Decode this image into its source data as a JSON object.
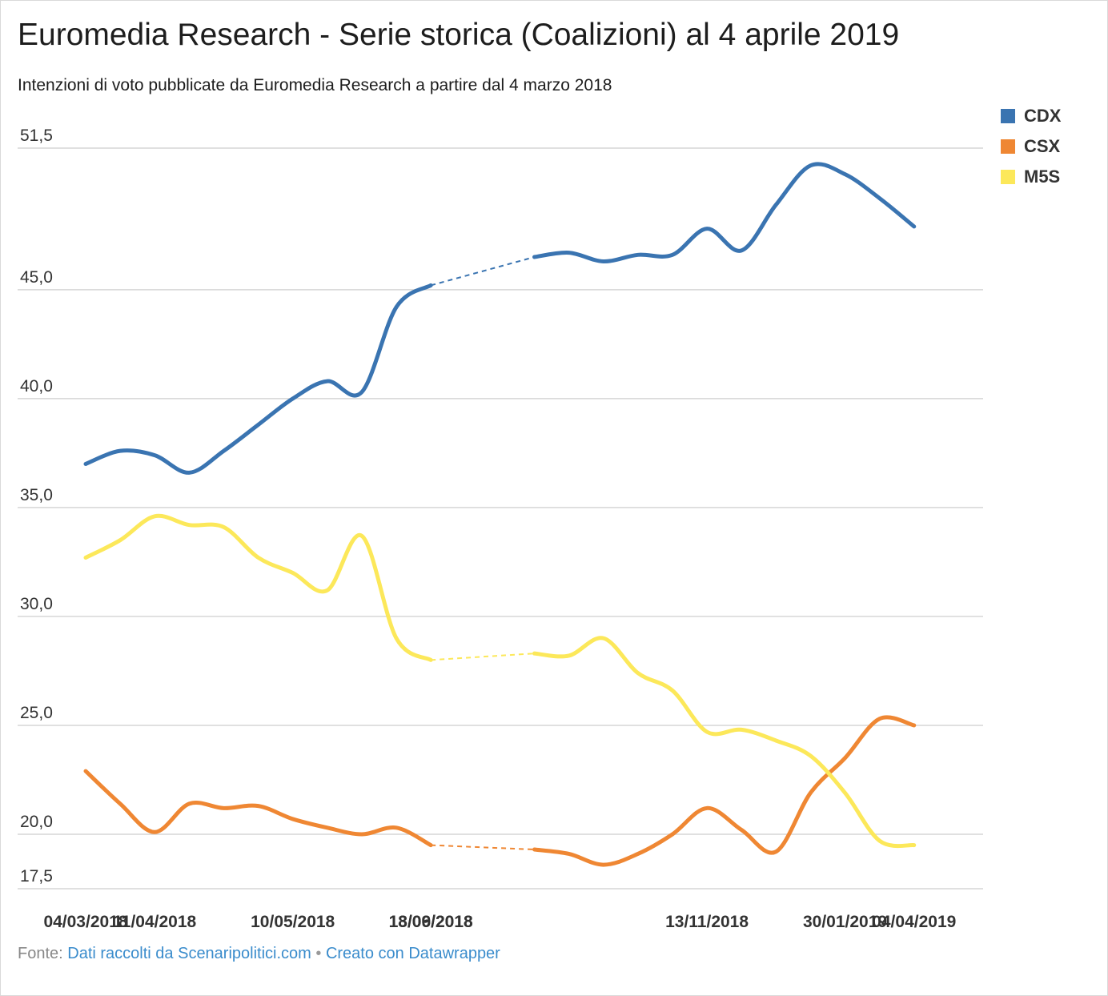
{
  "title": "Euromedia Research - Serie storica (Coalizioni) al 4 aprile 2019",
  "subtitle": "Intenzioni di voto pubblicate da Euromedia Research a partire dal 4 marzo 2018",
  "legend": [
    {
      "label": "CDX",
      "color": "#3a74b1"
    },
    {
      "label": "CSX",
      "color": "#ef8733"
    },
    {
      "label": "M5S",
      "color": "#fce85a"
    }
  ],
  "footer": {
    "prefix": "Fonte: ",
    "source": "Dati raccolti da Scenaripolitici.com",
    "separator": " • ",
    "credit": "Creato con Datawrapper"
  },
  "chart_data": {
    "type": "line",
    "title": "Euromedia Research - Serie storica (Coalizioni) al 4 aprile 2019",
    "xlabel": "",
    "ylabel": "",
    "ylim": [
      17.5,
      51.5
    ],
    "y_ticks": [
      "51,5",
      "45,0",
      "40,0",
      "35,0",
      "30,0",
      "25,0",
      "20,0",
      "17,5"
    ],
    "y_tick_values": [
      51.5,
      45.0,
      40.0,
      35.0,
      30.0,
      25.0,
      20.0,
      17.5
    ],
    "x_tick_labels": [
      "04/03/2018",
      "11/04/2018",
      "10/05/2018",
      "13/06/2018",
      "18/09/2018",
      "13/11/2018",
      "30/01/2019",
      "04/04/2019"
    ],
    "x_tick_index": [
      0,
      2,
      6,
      10,
      12,
      18,
      22,
      26
    ],
    "gap": {
      "after_index": 10,
      "before_index": 12
    },
    "grid": true,
    "legend_position": "top-right",
    "series": [
      {
        "name": "CDX",
        "color": "#3a74b1",
        "values": [
          37.0,
          37.6,
          37.4,
          36.6,
          37.6,
          38.8,
          40.0,
          40.8,
          40.3,
          44.2,
          45.2,
          46.5,
          46.7,
          46.3,
          46.6,
          46.6,
          47.8,
          46.8,
          48.9,
          50.7,
          50.3,
          49.2,
          47.9
        ]
      },
      {
        "name": "CSX",
        "color": "#ef8733",
        "values": [
          22.9,
          21.4,
          20.1,
          21.4,
          21.2,
          21.3,
          20.7,
          20.3,
          20.0,
          20.3,
          19.5,
          19.3,
          19.1,
          18.6,
          19.1,
          20.0,
          21.2,
          20.2,
          19.2,
          21.9,
          23.5,
          25.3,
          25.0
        ]
      },
      {
        "name": "M5S",
        "color": "#fce85a",
        "values": [
          32.7,
          33.5,
          34.6,
          34.2,
          34.1,
          32.7,
          32.0,
          31.2,
          33.7,
          29.0,
          28.0,
          28.3,
          28.2,
          29.0,
          27.4,
          26.6,
          24.7,
          24.8,
          24.3,
          23.6,
          21.9,
          19.7,
          19.5
        ]
      }
    ]
  }
}
